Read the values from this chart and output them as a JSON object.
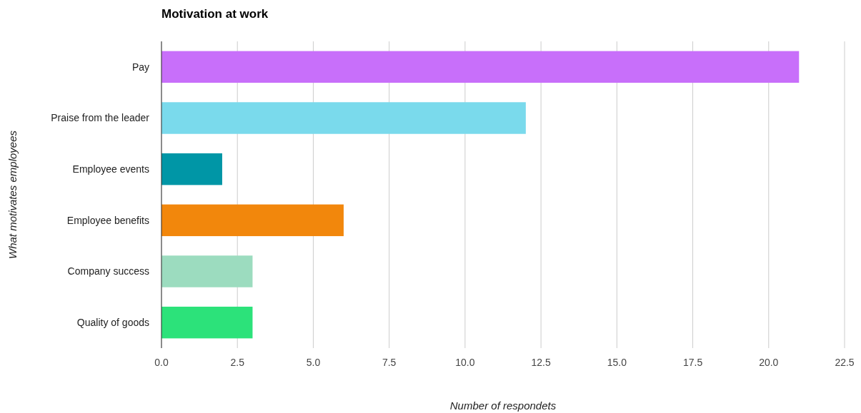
{
  "chart_data": {
    "type": "bar",
    "orientation": "horizontal",
    "title": "Motivation at work",
    "xlabel": "Number of respondets",
    "ylabel": "What motivates employees",
    "categories": [
      "Pay",
      "Praise from the leader",
      "Employee events",
      "Employee benefits",
      "Company success",
      "Quality of goods"
    ],
    "values": [
      21,
      12,
      2,
      6,
      3,
      3
    ],
    "colors": [
      "#c86ffa",
      "#7adaec",
      "#0096a6",
      "#f2870c",
      "#9cdcbf",
      "#2ce27a"
    ],
    "xlim": [
      0,
      22.5
    ],
    "xticks": [
      {
        "value": 0,
        "label": "0.0"
      },
      2.5,
      {
        "value": 5,
        "label": "5.0"
      },
      7.5,
      {
        "value": 10,
        "label": "10.0"
      },
      12.5,
      {
        "value": 15,
        "label": "15.0"
      },
      17.5,
      {
        "value": 20,
        "label": "20.0"
      },
      22.5
    ],
    "grid": "x"
  }
}
